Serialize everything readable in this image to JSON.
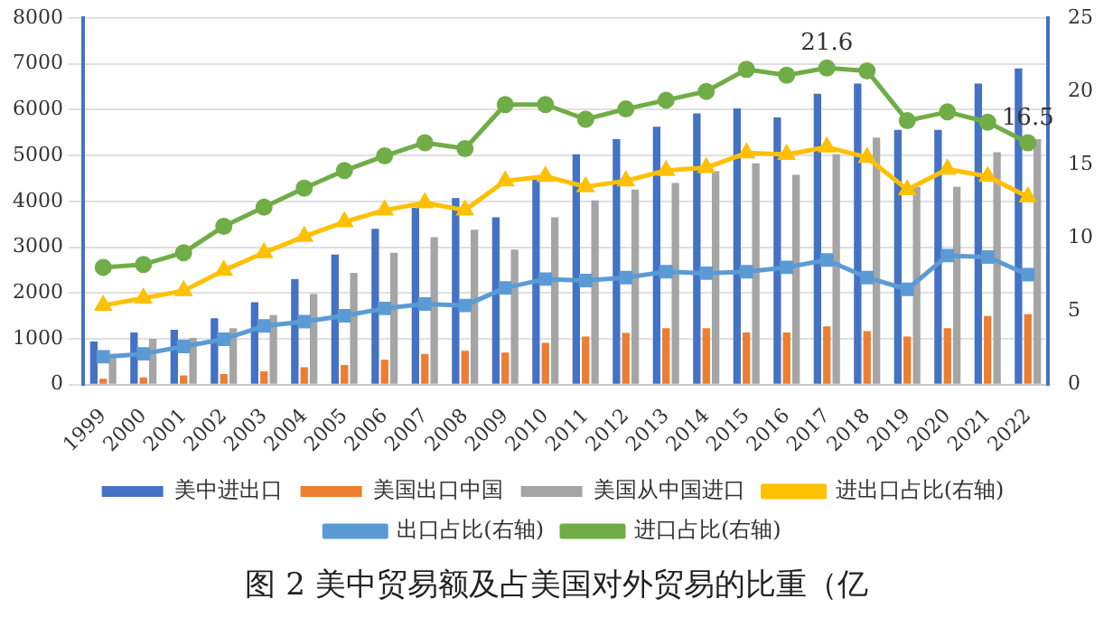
{
  "chart_data": {
    "type": "bar",
    "title": "图 2 美中贸易额及占美国对外贸易的比重（亿",
    "categories": [
      "1999",
      "2000",
      "2001",
      "2002",
      "2003",
      "2004",
      "2005",
      "2006",
      "2007",
      "2008",
      "2009",
      "2010",
      "2011",
      "2012",
      "2013",
      "2014",
      "2015",
      "2016",
      "2017",
      "2018",
      "2019",
      "2020",
      "2021",
      "2022"
    ],
    "series": [
      {
        "name": "美中进出口",
        "color": "#4472c4",
        "values": [
          940,
          1140,
          1200,
          1450,
          1800,
          2300,
          2840,
          3400,
          3860,
          4070,
          3650,
          4480,
          5030,
          5360,
          5630,
          5920,
          6030,
          5830,
          6350,
          6570,
          5560,
          5560,
          6570,
          6900
        ]
      },
      {
        "name": "美国出口中国",
        "color": "#ed7d31",
        "values": [
          130,
          160,
          200,
          230,
          290,
          380,
          430,
          540,
          670,
          740,
          700,
          910,
          1050,
          1130,
          1230,
          1230,
          1140,
          1140,
          1270,
          1170,
          1050,
          1230,
          1500,
          1540
        ]
      },
      {
        "name": "美国从中国进口",
        "color": "#a5a5a5",
        "values": [
          670,
          1000,
          1020,
          1230,
          1520,
          1980,
          2440,
          2880,
          3220,
          3380,
          2950,
          3650,
          4020,
          4260,
          4400,
          4660,
          4830,
          4580,
          5030,
          5390,
          4320,
          4320,
          5070,
          5360
        ]
      },
      {
        "name": "进出口占比(右轴)",
        "type": "line",
        "axis": "y2",
        "marker": "triangle",
        "color": "#ffc000",
        "values": [
          5.4,
          5.9,
          6.4,
          7.8,
          9.0,
          10.1,
          11.1,
          11.9,
          12.4,
          11.9,
          13.9,
          14.2,
          13.5,
          13.9,
          14.6,
          14.8,
          15.8,
          15.7,
          16.2,
          15.5,
          13.3,
          14.7,
          14.2,
          12.8
        ]
      },
      {
        "name": "出口占比(右轴)",
        "type": "line",
        "axis": "y2",
        "marker": "square",
        "color": "#5b9bd5",
        "values": [
          1.9,
          2.1,
          2.6,
          3.1,
          4.0,
          4.3,
          4.7,
          5.2,
          5.5,
          5.4,
          6.6,
          7.2,
          7.1,
          7.3,
          7.7,
          7.6,
          7.7,
          8.0,
          8.5,
          7.3,
          6.5,
          8.8,
          8.7,
          7.5
        ]
      },
      {
        "name": "进口占比(右轴)",
        "type": "line",
        "axis": "y2",
        "marker": "circle",
        "color": "#70ad47",
        "values": [
          8.0,
          8.2,
          9.0,
          10.8,
          12.1,
          13.4,
          14.6,
          15.6,
          16.5,
          16.1,
          19.1,
          19.1,
          18.1,
          18.8,
          19.4,
          20.0,
          21.5,
          21.1,
          21.6,
          21.4,
          18.0,
          18.6,
          17.9,
          16.5
        ],
        "value_labels": [
          null,
          null,
          null,
          null,
          null,
          null,
          null,
          null,
          null,
          null,
          null,
          null,
          null,
          null,
          null,
          null,
          null,
          null,
          "21.6",
          null,
          null,
          null,
          null,
          "16.5"
        ]
      }
    ],
    "ylim": [
      0,
      8000
    ],
    "yticks": [
      0,
      1000,
      2000,
      3000,
      4000,
      5000,
      6000,
      7000,
      8000
    ],
    "y2lim": [
      0,
      25
    ],
    "y2ticks": [
      0,
      5,
      10,
      15,
      20,
      25
    ],
    "grid": "y",
    "legend": "bottom"
  }
}
